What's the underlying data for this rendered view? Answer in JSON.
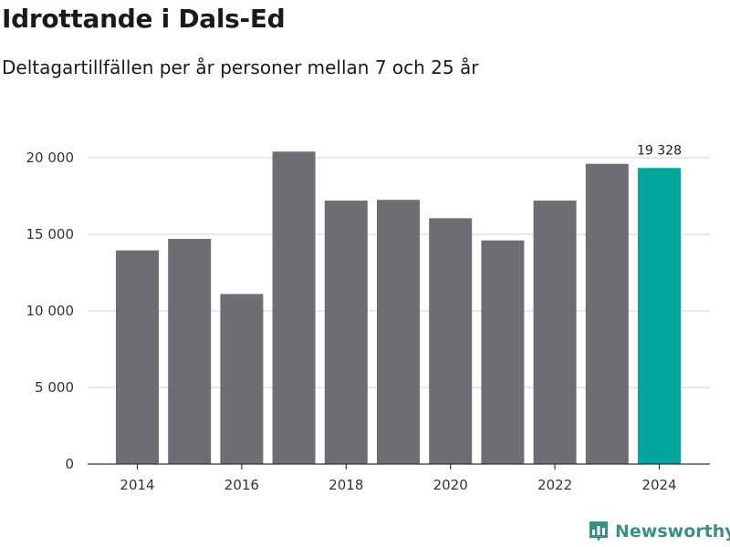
{
  "title": "Idrottande i Dals-Ed",
  "subtitle": "Deltagartillfällen per år personer mellan 7 och 25 år",
  "brand": {
    "name": "Newsworthy",
    "icon": "bar-chart-logo-icon",
    "color": "#3a8f86"
  },
  "colors": {
    "bar": "#6d6d73",
    "highlight": "#00a59b",
    "grid": "#d9d9d9",
    "axis": "#333333"
  },
  "chart_data": {
    "type": "bar",
    "title": "Idrottande i Dals-Ed",
    "subtitle": "Deltagartillfällen per år personer mellan 7 och 25 år",
    "xlabel": "",
    "ylabel": "",
    "categories": [
      "2014",
      "2015",
      "2016",
      "2017",
      "2018",
      "2019",
      "2020",
      "2021",
      "2022",
      "2023",
      "2024"
    ],
    "values": [
      13950,
      14700,
      11100,
      20400,
      17200,
      17250,
      16050,
      14600,
      17200,
      19600,
      19328
    ],
    "highlight_index": 10,
    "data_labels": [
      {
        "category": "2024",
        "text": "19 328"
      }
    ],
    "x_tick_labels": [
      "2014",
      "2016",
      "2018",
      "2020",
      "2022",
      "2024"
    ],
    "y_ticks": [
      0,
      5000,
      10000,
      15000,
      20000
    ],
    "y_tick_labels": [
      "0",
      "5 000",
      "10 000",
      "15 000",
      "20 000"
    ],
    "ylim": [
      0,
      20000
    ],
    "grid": true,
    "legend": "none"
  }
}
